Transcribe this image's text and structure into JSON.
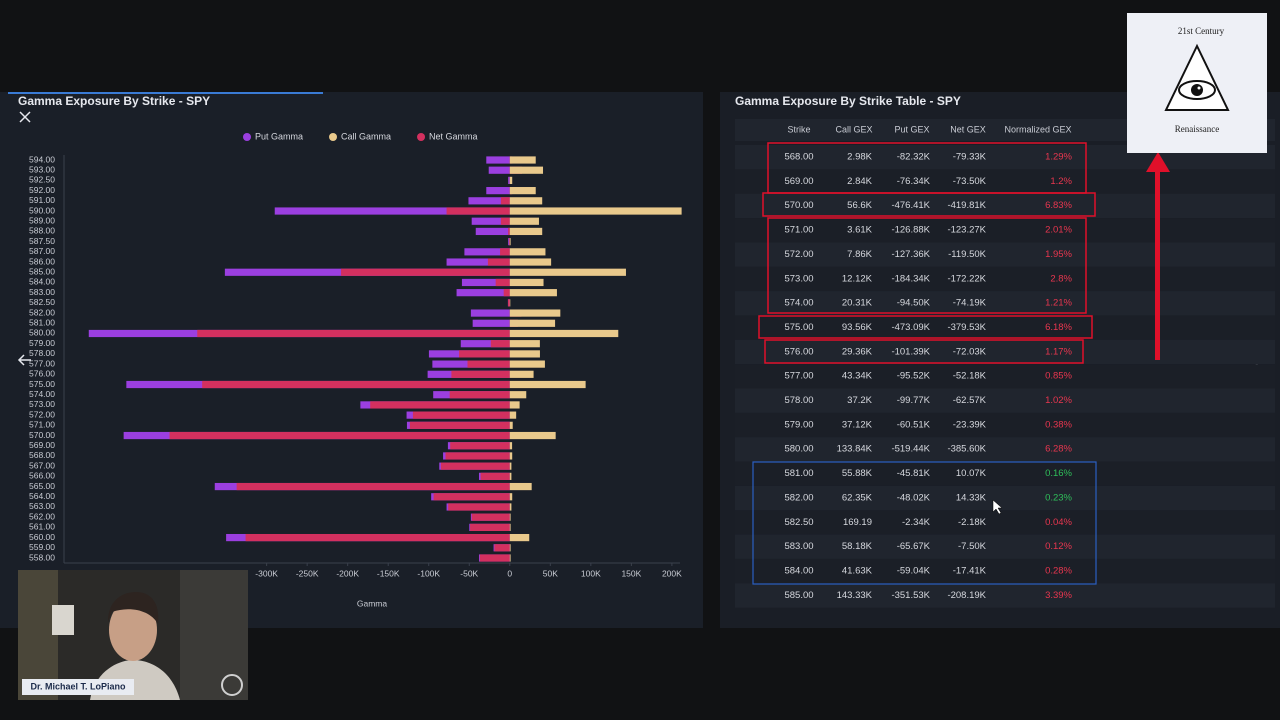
{
  "chart_data": {
    "type": "bar",
    "orientation": "horizontal",
    "title": "Gamma Exposure By Strike - SPY",
    "x_label": "Gamma",
    "categories": [
      "594.00",
      "593.00",
      "592.50",
      "592.00",
      "591.00",
      "590.00",
      "589.00",
      "588.00",
      "587.50",
      "587.00",
      "586.00",
      "585.00",
      "584.00",
      "583.00",
      "582.50",
      "582.00",
      "581.00",
      "580.00",
      "579.00",
      "578.00",
      "577.00",
      "576.00",
      "575.00",
      "574.00",
      "573.00",
      "572.00",
      "571.00",
      "570.00",
      "569.00",
      "568.00",
      "567.00",
      "566.00",
      "565.00",
      "564.00",
      "563.00",
      "562.00",
      "561.00",
      "560.00",
      "559.00",
      "558.00"
    ],
    "series": [
      {
        "name": "Put Gamma",
        "color": "#9b3fe0",
        "values": [
          -29000,
          -26000,
          -2000,
          -29000,
          -51000,
          -290000,
          -47000,
          -42000,
          -2000,
          -56000,
          -78000,
          -351530,
          -59040,
          -65670,
          -2340,
          -48020,
          -45810,
          -519440,
          -60510,
          -99770,
          -95520,
          -101390,
          -473090,
          -94500,
          -184340,
          -127360,
          -126880,
          -476410,
          -76340,
          -82320,
          -87000,
          -38000,
          -364000,
          -97000,
          -78000,
          -48000,
          -50000,
          -350000,
          -20000,
          -38000
        ]
      },
      {
        "name": "Call Gamma",
        "color": "#e9c98c",
        "values": [
          32000,
          41000,
          3000,
          32000,
          40000,
          212000,
          36000,
          40000,
          1000,
          44000,
          51000,
          143330,
          41630,
          58180,
          169.19,
          62350,
          55880,
          133840,
          37120,
          37200,
          43340,
          29360,
          93560,
          20310,
          12120,
          7860,
          3610,
          56600,
          2840,
          2980,
          2000,
          2000,
          27000,
          3000,
          2000,
          1000,
          1000,
          24000,
          1000,
          1000
        ]
      },
      {
        "name": "Net Gamma",
        "color": "#d3305f",
        "values": [
          3000,
          15000,
          1000,
          3000,
          -11000,
          -78000,
          -11000,
          -2000,
          -1000,
          -12000,
          -27000,
          -208190,
          -17410,
          -7500,
          -2180,
          14330,
          10070,
          -385600,
          -23390,
          -62570,
          -52180,
          -72030,
          -379530,
          -74190,
          -172220,
          -119500,
          -123270,
          -419810,
          -73500,
          -79330,
          -85000,
          -36000,
          -337000,
          -94000,
          -76000,
          -47000,
          -49000,
          -326000,
          -19000,
          -37000
        ]
      }
    ],
    "xlim": [
      -550000,
      210000
    ],
    "xticks": [
      {
        "value": -300000,
        "label": "-300K"
      },
      {
        "value": -250000,
        "label": "-250K"
      },
      {
        "value": -200000,
        "label": "-200K"
      },
      {
        "value": -150000,
        "label": "-150K"
      },
      {
        "value": -100000,
        "label": "-100K"
      },
      {
        "value": -50000,
        "label": "-50K"
      },
      0,
      {
        "value": 50000,
        "label": "50K"
      },
      {
        "value": 100000,
        "label": "100K"
      },
      {
        "value": 150000,
        "label": "150K"
      },
      {
        "value": 200000,
        "label": "200K"
      }
    ],
    "legend": "top",
    "overlay": true
  },
  "table": {
    "title": "Gamma Exposure By Strike Table - SPY",
    "columns": [
      "Strike",
      "Call GEX",
      "Put GEX",
      "Net GEX",
      "Normalized GEX"
    ],
    "rows": [
      [
        "568.00",
        "2.98K",
        "-82.32K",
        "-79.33K",
        "1.29%"
      ],
      [
        "569.00",
        "2.84K",
        "-76.34K",
        "-73.50K",
        "1.2%"
      ],
      [
        "570.00",
        "56.6K",
        "-476.41K",
        "-419.81K",
        "6.83%"
      ],
      [
        "571.00",
        "3.61K",
        "-126.88K",
        "-123.27K",
        "2.01%"
      ],
      [
        "572.00",
        "7.86K",
        "-127.36K",
        "-119.50K",
        "1.95%"
      ],
      [
        "573.00",
        "12.12K",
        "-184.34K",
        "-172.22K",
        "2.8%"
      ],
      [
        "574.00",
        "20.31K",
        "-94.50K",
        "-74.19K",
        "1.21%"
      ],
      [
        "575.00",
        "93.56K",
        "-473.09K",
        "-379.53K",
        "6.18%"
      ],
      [
        "576.00",
        "29.36K",
        "-101.39K",
        "-72.03K",
        "1.17%"
      ],
      [
        "577.00",
        "43.34K",
        "-95.52K",
        "-52.18K",
        "0.85%"
      ],
      [
        "578.00",
        "37.2K",
        "-99.77K",
        "-62.57K",
        "1.02%"
      ],
      [
        "579.00",
        "37.12K",
        "-60.51K",
        "-23.39K",
        "0.38%"
      ],
      [
        "580.00",
        "133.84K",
        "-519.44K",
        "-385.60K",
        "6.28%"
      ],
      [
        "581.00",
        "55.88K",
        "-45.81K",
        "10.07K",
        "0.16%"
      ],
      [
        "582.00",
        "62.35K",
        "-48.02K",
        "14.33K",
        "0.23%"
      ],
      [
        "582.50",
        "169.19",
        "-2.34K",
        "-2.18K",
        "0.04%"
      ],
      [
        "583.00",
        "58.18K",
        "-65.67K",
        "-7.50K",
        "0.12%"
      ],
      [
        "584.00",
        "41.63K",
        "-59.04K",
        "-17.41K",
        "0.28%"
      ],
      [
        "585.00",
        "143.33K",
        "-351.53K",
        "-208.19K",
        "3.39%"
      ]
    ]
  },
  "logo": {
    "top": "21st Century",
    "bottom": "Renaissance"
  },
  "webcam": {
    "name": "Dr. Michael T. LoPiano"
  }
}
